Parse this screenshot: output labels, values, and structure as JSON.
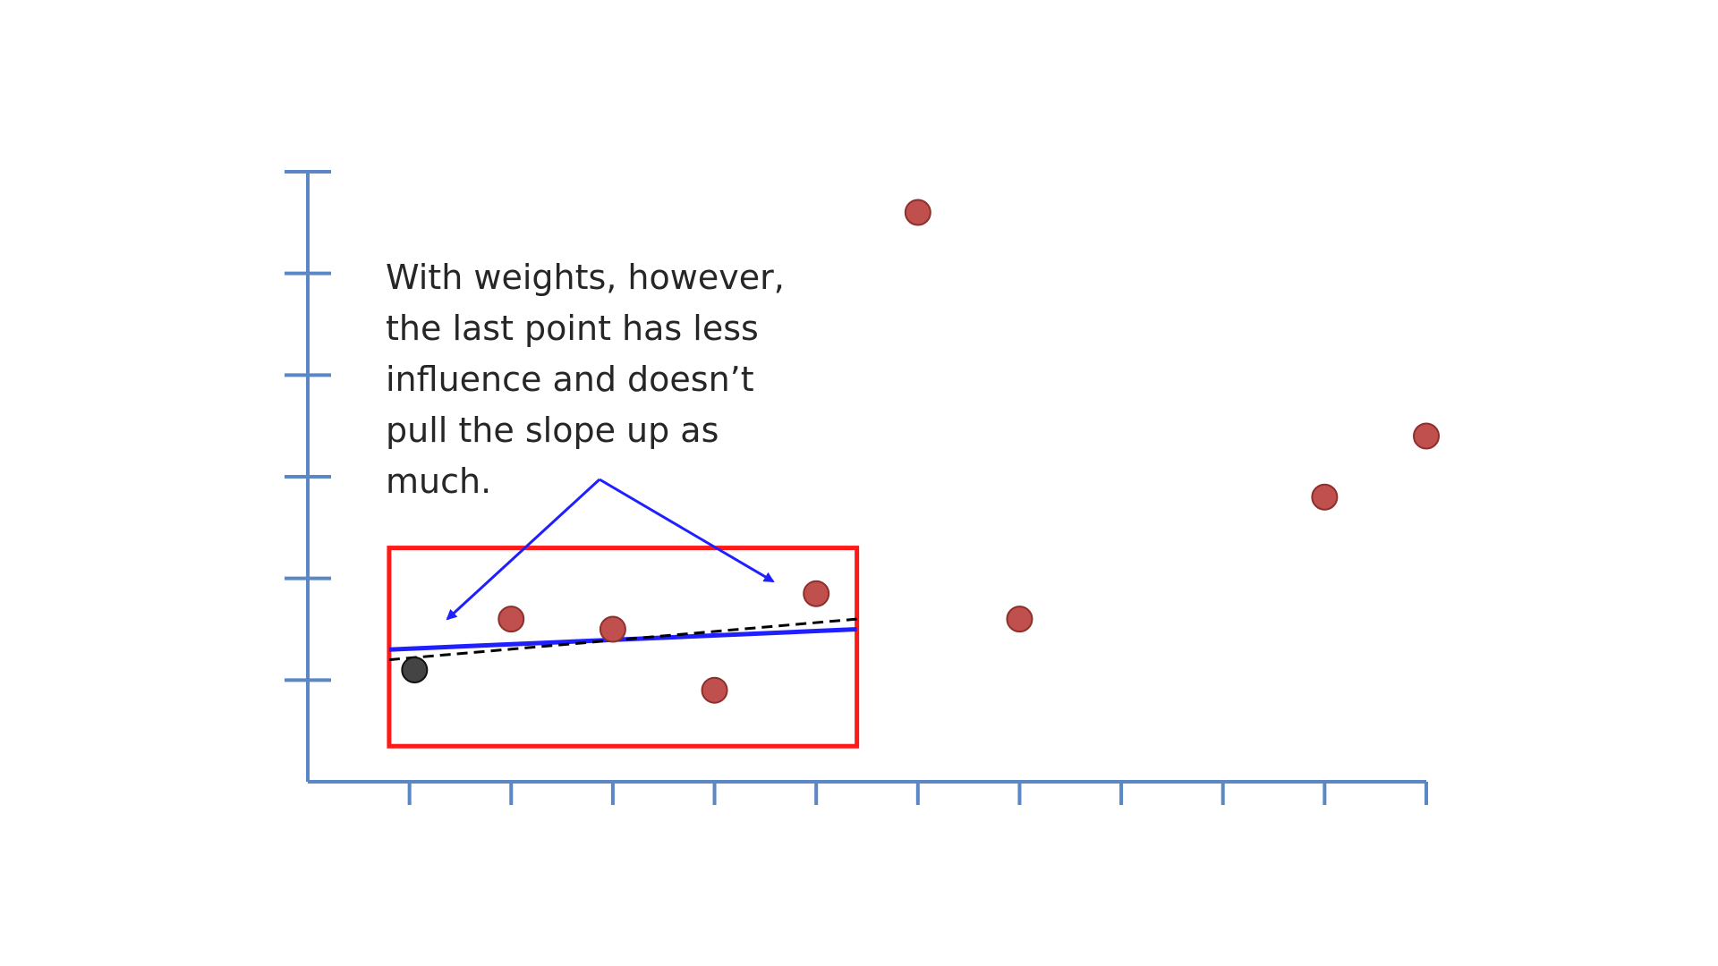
{
  "colors": {
    "axis": "#5b87c5",
    "point_fill": "#c0504d",
    "point_stroke": "#8e2f2c",
    "weighted_point_fill": "#444444",
    "highlight_box": "#ff1a1a",
    "weighted_fit": "#1f1fff",
    "unweighted_fit": "#000000",
    "arrow": "#1f1fff"
  },
  "annotation": {
    "lines": [
      "With weights, however,",
      "the last point has less",
      "influence and doesn’t",
      "pull the slope up as",
      "much."
    ]
  },
  "chart_data": {
    "type": "scatter",
    "title": "",
    "xlabel": "",
    "ylabel": "",
    "xlim": [
      0,
      11
    ],
    "ylim": [
      0,
      6
    ],
    "x_ticks": [
      1,
      2,
      3,
      4,
      5,
      6,
      7,
      8,
      9,
      10,
      11
    ],
    "y_ticks": [
      1,
      2,
      3,
      4,
      5,
      6
    ],
    "grid": false,
    "series": [
      {
        "points": [
          {
            "x": 2.0,
            "y": 1.6
          },
          {
            "x": 3.0,
            "y": 1.5
          },
          {
            "x": 4.0,
            "y": 0.9
          },
          {
            "x": 5.0,
            "y": 1.85
          },
          {
            "x": 6.0,
            "y": 5.6
          },
          {
            "x": 7.0,
            "y": 1.6
          },
          {
            "x": 10.0,
            "y": 2.8
          },
          {
            "x": 11.0,
            "y": 3.4
          }
        ]
      },
      {
        "points": [
          {
            "x": 1.05,
            "y": 1.1
          }
        ]
      }
    ],
    "highlight_region": {
      "x": [
        0.8,
        5.4
      ],
      "y": [
        0.35,
        2.3
      ]
    },
    "fit_lines": [
      {
        "style": "solid",
        "x": [
          0.8,
          5.4
        ],
        "y": [
          1.3,
          1.5
        ]
      },
      {
        "style": "dashed",
        "x": [
          0.8,
          5.4
        ],
        "y": [
          1.2,
          1.6
        ]
      }
    ]
  }
}
